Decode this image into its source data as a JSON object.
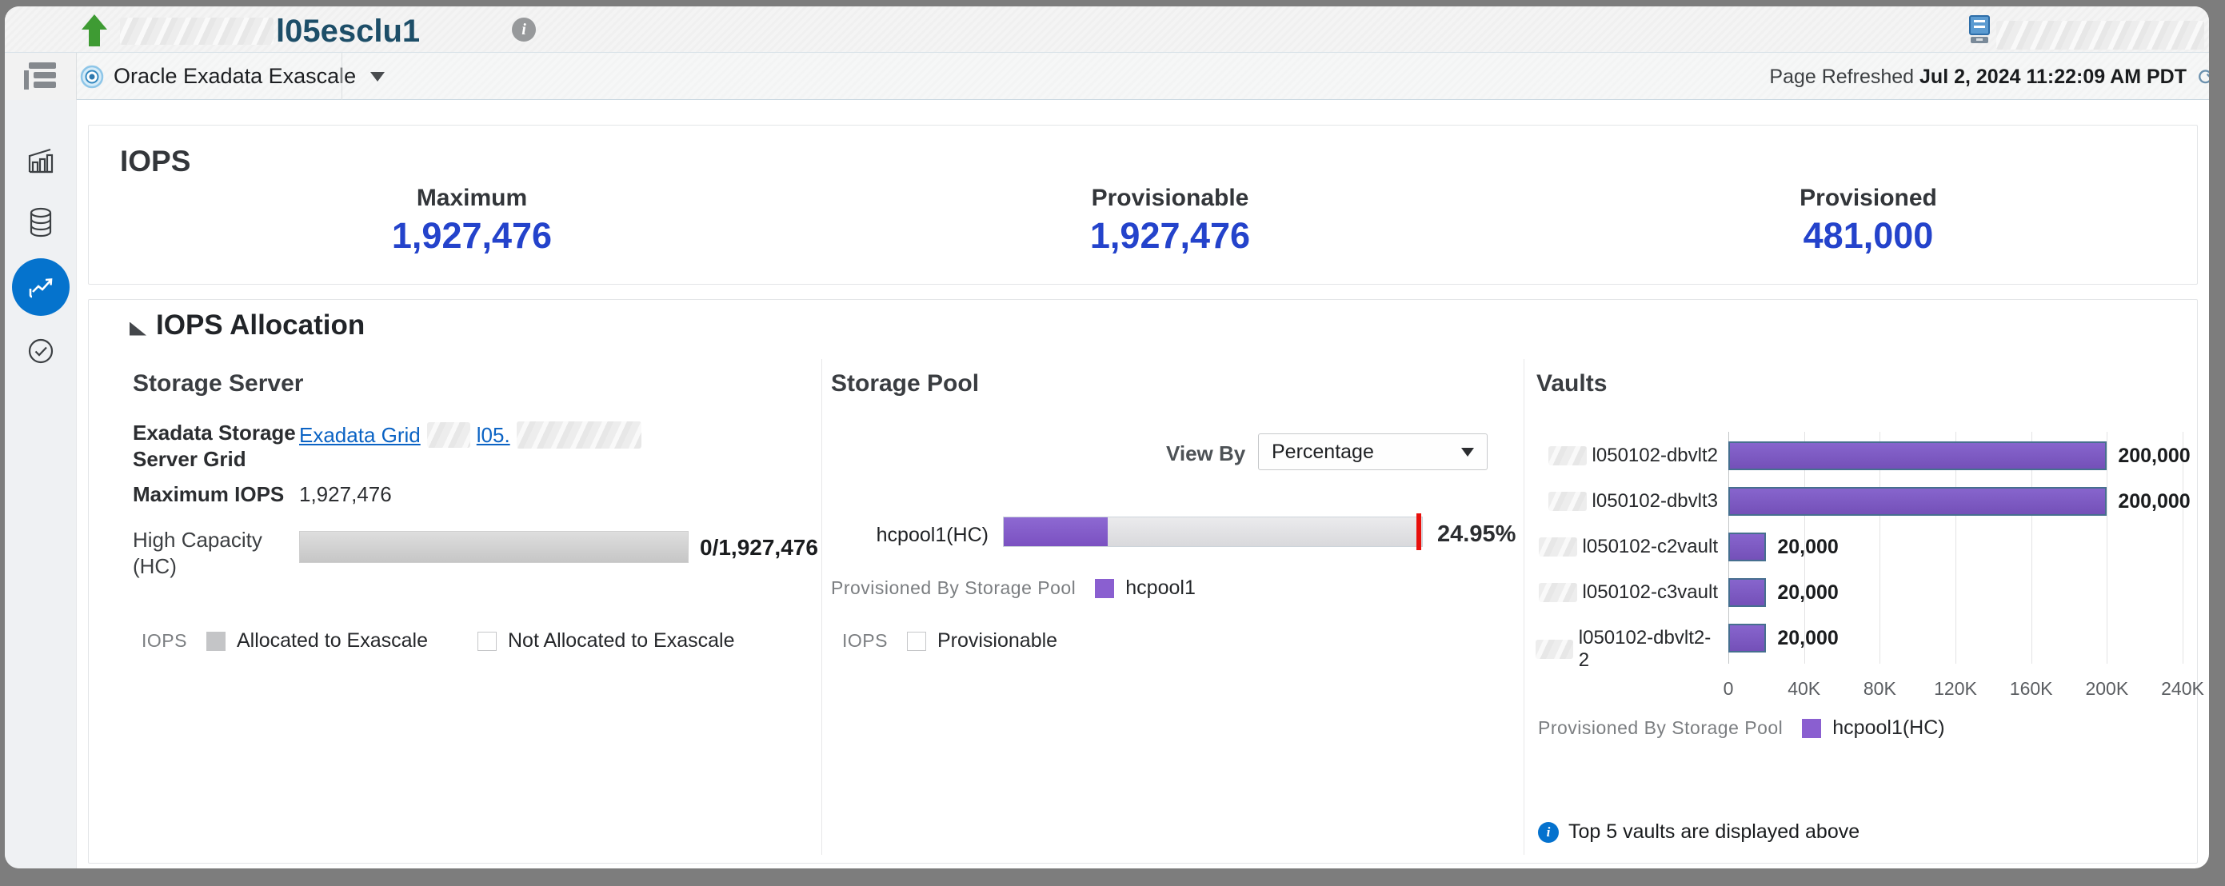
{
  "window": {
    "title": "l05esclu1"
  },
  "context_bar": {
    "target_type": "Oracle Exadata Exascale",
    "page_refreshed_label": "Page Refreshed",
    "page_refreshed_value": "Jul 2, 2024 11:22:09 AM PDT"
  },
  "sidebar": {
    "items": [
      {
        "icon": "bar-chart-icon"
      },
      {
        "icon": "database-icon"
      },
      {
        "icon": "line-chart-icon",
        "active": true
      },
      {
        "icon": "check-circle-icon"
      }
    ]
  },
  "iops": {
    "title": "IOPS",
    "metrics": [
      {
        "label": "Maximum",
        "value": "1,927,476"
      },
      {
        "label": "Provisionable",
        "value": "1,927,476"
      },
      {
        "label": "Provisioned",
        "value": "481,000"
      }
    ]
  },
  "allocation": {
    "title": "IOPS Allocation",
    "storage_server": {
      "heading": "Storage Server",
      "grid_label": "Exadata Storage Server Grid",
      "grid_link1": "Exadata Grid",
      "grid_link2": "l05.",
      "max_iops_label": "Maximum IOPS",
      "max_iops_value": "1,927,476",
      "hc_label": "High Capacity (HC)",
      "hc_bar_value": "0/1,927,476",
      "legend_group": "IOPS",
      "legend_allocated": "Allocated to Exascale",
      "legend_not_allocated": "Not Allocated to Exascale"
    },
    "storage_pool": {
      "heading": "Storage Pool",
      "view_by_label": "View By",
      "view_by_value": "Percentage",
      "bar": {
        "label": "hcpool1(HC)",
        "percent": 24.95,
        "percent_label": "24.95%"
      },
      "legend1_title": "Provisioned By Storage Pool",
      "legend1_item": "hcpool1",
      "legend2_title": "IOPS",
      "legend2_item": "Provisionable"
    },
    "vaults": {
      "heading": "Vaults",
      "chart_data": {
        "type": "bar",
        "orientation": "horizontal",
        "categories": [
          "l050102-dbvlt2",
          "l050102-dbvlt3",
          "l050102-c2vault",
          "l050102-c3vault",
          "l050102-dbvlt2-2"
        ],
        "values": [
          200000,
          200000,
          20000,
          20000,
          20000
        ],
        "value_labels": [
          "200,000",
          "200,000",
          "20,000",
          "20,000",
          "20,000"
        ],
        "x_ticks": [
          "0",
          "40K",
          "80K",
          "120K",
          "160K",
          "200K",
          "240K"
        ],
        "xlim": [
          0,
          240000
        ],
        "grid": true,
        "series_color": "#7d5abe",
        "redacted_label_prefix": true
      },
      "legend_title": "Provisioned By Storage Pool",
      "legend_item": "hcpool1(HC)",
      "note": "Top 5 vaults are displayed above"
    }
  },
  "colors": {
    "metric_blue": "#2443cb",
    "link_blue": "#0b63c4",
    "active_nav_blue": "#0573cd",
    "purple": "#8a5fd0",
    "red_marker": "#e8100c",
    "green_arrow": "#3e9b33",
    "bar_border": "#466f8f",
    "gray_bar": "#c6c6c6"
  }
}
